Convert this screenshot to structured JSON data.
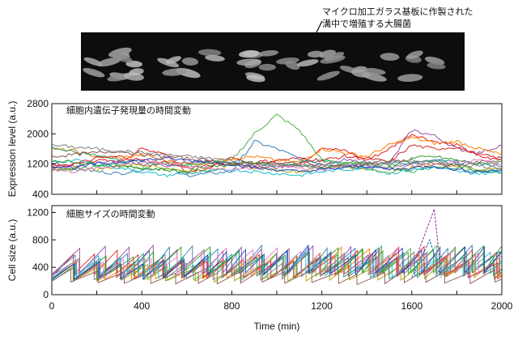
{
  "image_annotation": {
    "line1": "マイクロ加工ガラス基板に作製された",
    "line2": "溝中で増殖する大腸菌"
  },
  "colors": [
    "#e41a1c",
    "#377eb8",
    "#4daf4a",
    "#984ea3",
    "#ff7f00",
    "#a6a600",
    "#1b9e77",
    "#d62728",
    "#17becf",
    "#2ca02c",
    "#8c564b",
    "#e377c2",
    "#7f7f7f",
    "#1f3fbf"
  ],
  "chart_data": [
    {
      "type": "line",
      "panel_title": "細胞内遺伝子発現量の時間変動",
      "ylabel": "Expression level (a.u.)",
      "xlabel": "",
      "xlim": [
        0,
        2000
      ],
      "ylim": [
        400,
        2800
      ],
      "yticks": [
        "400",
        "1200",
        "2000",
        "2800"
      ],
      "xticks": [
        "0",
        "400",
        "800",
        "1200",
        "1600",
        "2000"
      ],
      "series_count": 14,
      "series": [
        {
          "x": [
            0,
            100,
            200,
            300,
            400,
            500,
            600,
            700,
            800,
            900,
            1000,
            1100,
            1200,
            1300,
            1400,
            1500,
            1600,
            1700,
            1800,
            1900,
            2000
          ],
          "y": [
            1150,
            1200,
            1300,
            1250,
            1600,
            1500,
            1000,
            1100,
            1350,
            1200,
            1250,
            1150,
            1650,
            1550,
            1300,
            1600,
            2000,
            1800,
            1700,
            1400,
            1300
          ]
        },
        {
          "x": [
            0,
            100,
            200,
            300,
            400,
            500,
            600,
            700,
            800,
            900,
            1000,
            1100,
            1200,
            1300,
            1400,
            1500,
            1600,
            1700,
            1800,
            1900,
            2000
          ],
          "y": [
            1050,
            1100,
            1000,
            950,
            1050,
            1100,
            900,
            950,
            1000,
            1800,
            1600,
            1350,
            1200,
            1150,
            1100,
            1250,
            1200,
            1300,
            1250,
            1200,
            1150
          ]
        },
        {
          "x": [
            0,
            100,
            200,
            300,
            400,
            500,
            600,
            700,
            800,
            900,
            1000,
            1100,
            1200,
            1300,
            1400,
            1500,
            1600,
            1700,
            1800,
            1900,
            2000
          ],
          "y": [
            1100,
            1050,
            1150,
            1200,
            1100,
            1250,
            1150,
            1200,
            1300,
            2000,
            2500,
            2100,
            1300,
            1250,
            1200,
            1100,
            1000,
            1150,
            1100,
            1000,
            1050
          ]
        },
        {
          "x": [
            0,
            100,
            200,
            300,
            400,
            500,
            600,
            700,
            800,
            900,
            1000,
            1100,
            1200,
            1300,
            1400,
            1500,
            1600,
            1700,
            1800,
            1900,
            2000
          ],
          "y": [
            1200,
            1150,
            1250,
            1300,
            1200,
            1150,
            1250,
            1300,
            1200,
            1150,
            1100,
            1200,
            1150,
            1300,
            1250,
            1200,
            2100,
            1950,
            1600,
            1500,
            1700
          ]
        },
        {
          "x": [
            0,
            100,
            200,
            300,
            400,
            500,
            600,
            700,
            800,
            900,
            1000,
            1100,
            1200,
            1300,
            1400,
            1500,
            1600,
            1700,
            1800,
            1900,
            2000
          ],
          "y": [
            1600,
            1550,
            1400,
            1350,
            1450,
            1300,
            1200,
            1250,
            1350,
            1400,
            1300,
            1250,
            1600,
            1500,
            1400,
            1700,
            1900,
            1750,
            1800,
            1600,
            1450
          ]
        },
        {
          "x": [
            0,
            100,
            200,
            300,
            400,
            500,
            600,
            700,
            800,
            900,
            1000,
            1100,
            1200,
            1300,
            1400,
            1500,
            1600,
            1700,
            1800,
            1900,
            2000
          ],
          "y": [
            1000,
            1100,
            1050,
            1150,
            1200,
            1100,
            1000,
            1050,
            1150,
            1100,
            1050,
            1000,
            1100,
            1150,
            1050,
            1000,
            1100,
            1200,
            1150,
            1050,
            1100
          ]
        },
        {
          "x": [
            0,
            100,
            200,
            300,
            400,
            500,
            600,
            700,
            800,
            900,
            1000,
            1100,
            1200,
            1300,
            1400,
            1500,
            1600,
            1700,
            1800,
            1900,
            2000
          ],
          "y": [
            1650,
            1500,
            1450,
            1300,
            1250,
            1200,
            1150,
            1300,
            1250,
            1200,
            1150,
            1250,
            1300,
            1200,
            1150,
            1100,
            1250,
            1300,
            1200,
            1000,
            950
          ]
        },
        {
          "x": [
            0,
            100,
            200,
            300,
            400,
            500,
            600,
            700,
            800,
            900,
            1000,
            1100,
            1200,
            1300,
            1400,
            1500,
            1600,
            1700,
            1800,
            1900,
            2000
          ],
          "y": [
            1100,
            1200,
            1350,
            1400,
            1300,
            1250,
            1100,
            1150,
            1200,
            1250,
            1300,
            1350,
            1300,
            1400,
            1350,
            1250,
            1700,
            1600,
            1650,
            1450,
            1350
          ]
        },
        {
          "x": [
            0,
            100,
            200,
            300,
            400,
            500,
            600,
            700,
            800,
            900,
            1000,
            1100,
            1200,
            1300,
            1400,
            1500,
            1600,
            1700,
            1800,
            1900,
            2000
          ],
          "y": [
            1250,
            1300,
            1200,
            1100,
            1000,
            900,
            950,
            1000,
            1050,
            1000,
            950,
            900,
            1000,
            1050,
            1100,
            950,
            1050,
            1100,
            1000,
            950,
            1000
          ]
        },
        {
          "x": [
            0,
            100,
            200,
            300,
            400,
            500,
            600,
            700,
            800,
            900,
            1000,
            1100,
            1200,
            1300,
            1400,
            1500,
            1600,
            1700,
            1800,
            1900,
            2000
          ],
          "y": [
            1300,
            1250,
            1200,
            1150,
            1100,
            1050,
            1000,
            1150,
            1200,
            1250,
            1200,
            1150,
            1100,
            1200,
            1250,
            1150,
            1350,
            1400,
            1300,
            1200,
            1250
          ]
        },
        {
          "x": [
            0,
            100,
            200,
            300,
            400,
            500,
            600,
            700,
            800,
            900,
            1000,
            1100,
            1200,
            1300,
            1400,
            1500,
            1600,
            1700,
            1800,
            1900,
            2000
          ],
          "y": [
            1400,
            1450,
            1500,
            1550,
            1450,
            1400,
            1350,
            1300,
            1200,
            1150,
            1200,
            1250,
            1200,
            1150,
            1200,
            1300,
            1250,
            1200,
            1150,
            1250,
            1300
          ]
        },
        {
          "x": [
            0,
            100,
            200,
            300,
            400,
            500,
            600,
            700,
            800,
            900,
            1000,
            1100,
            1200,
            1300,
            1400,
            1500,
            1600,
            1700,
            1800,
            1900,
            2000
          ],
          "y": [
            1050,
            1000,
            1100,
            1150,
            1250,
            1200,
            1150,
            1100,
            1050,
            1100,
            1150,
            1100,
            1050,
            1150,
            1200,
            1100,
            1150,
            1200,
            1250,
            1300,
            1200
          ]
        },
        {
          "x": [
            0,
            100,
            200,
            300,
            400,
            500,
            600,
            700,
            800,
            900,
            1000,
            1100,
            1200,
            1300,
            1400,
            1500,
            1600,
            1700,
            1800,
            1900,
            2000
          ],
          "y": [
            1700,
            1650,
            1600,
            1550,
            1500,
            1450,
            1400,
            1350,
            1300,
            1250,
            1200,
            1150,
            1100,
            1150,
            1200,
            1250,
            1300,
            1250,
            1200,
            1150,
            1100
          ]
        },
        {
          "x": [
            0,
            100,
            200,
            300,
            400,
            500,
            600,
            700,
            800,
            900,
            1000,
            1100,
            1200,
            1300,
            1400,
            1500,
            1600,
            1700,
            1800,
            1900,
            2000
          ],
          "y": [
            1150,
            1100,
            1200,
            1250,
            1300,
            1350,
            1300,
            1250,
            1200,
            1100,
            1050,
            1000,
            1050,
            1100,
            1150,
            1050,
            1100,
            1150,
            1050,
            1000,
            1050
          ]
        }
      ]
    },
    {
      "type": "line",
      "panel_title": "細胞サイズの時間変動",
      "ylabel": "Cell size (a.u.)",
      "xlabel": "Time (min)",
      "xlim": [
        0,
        2000
      ],
      "ylim": [
        0,
        1300
      ],
      "yticks": [
        "0",
        "400",
        "800",
        "1200"
      ],
      "xticks": [
        "0",
        "400",
        "800",
        "1200",
        "1600",
        "2000"
      ],
      "series_count": 14,
      "pattern": "sawtooth growth-division cycles, period ≈ 80–120 min, rising from ~200 to ~450 then halving at each division",
      "excursions": [
        {
          "x": [
            1540,
            1620,
            1700,
            1730
          ],
          "y": [
            300,
            550,
            1250,
            300
          ]
        },
        {
          "x": [
            1600,
            1680,
            1730
          ],
          "y": [
            250,
            800,
            250
          ]
        }
      ]
    }
  ]
}
